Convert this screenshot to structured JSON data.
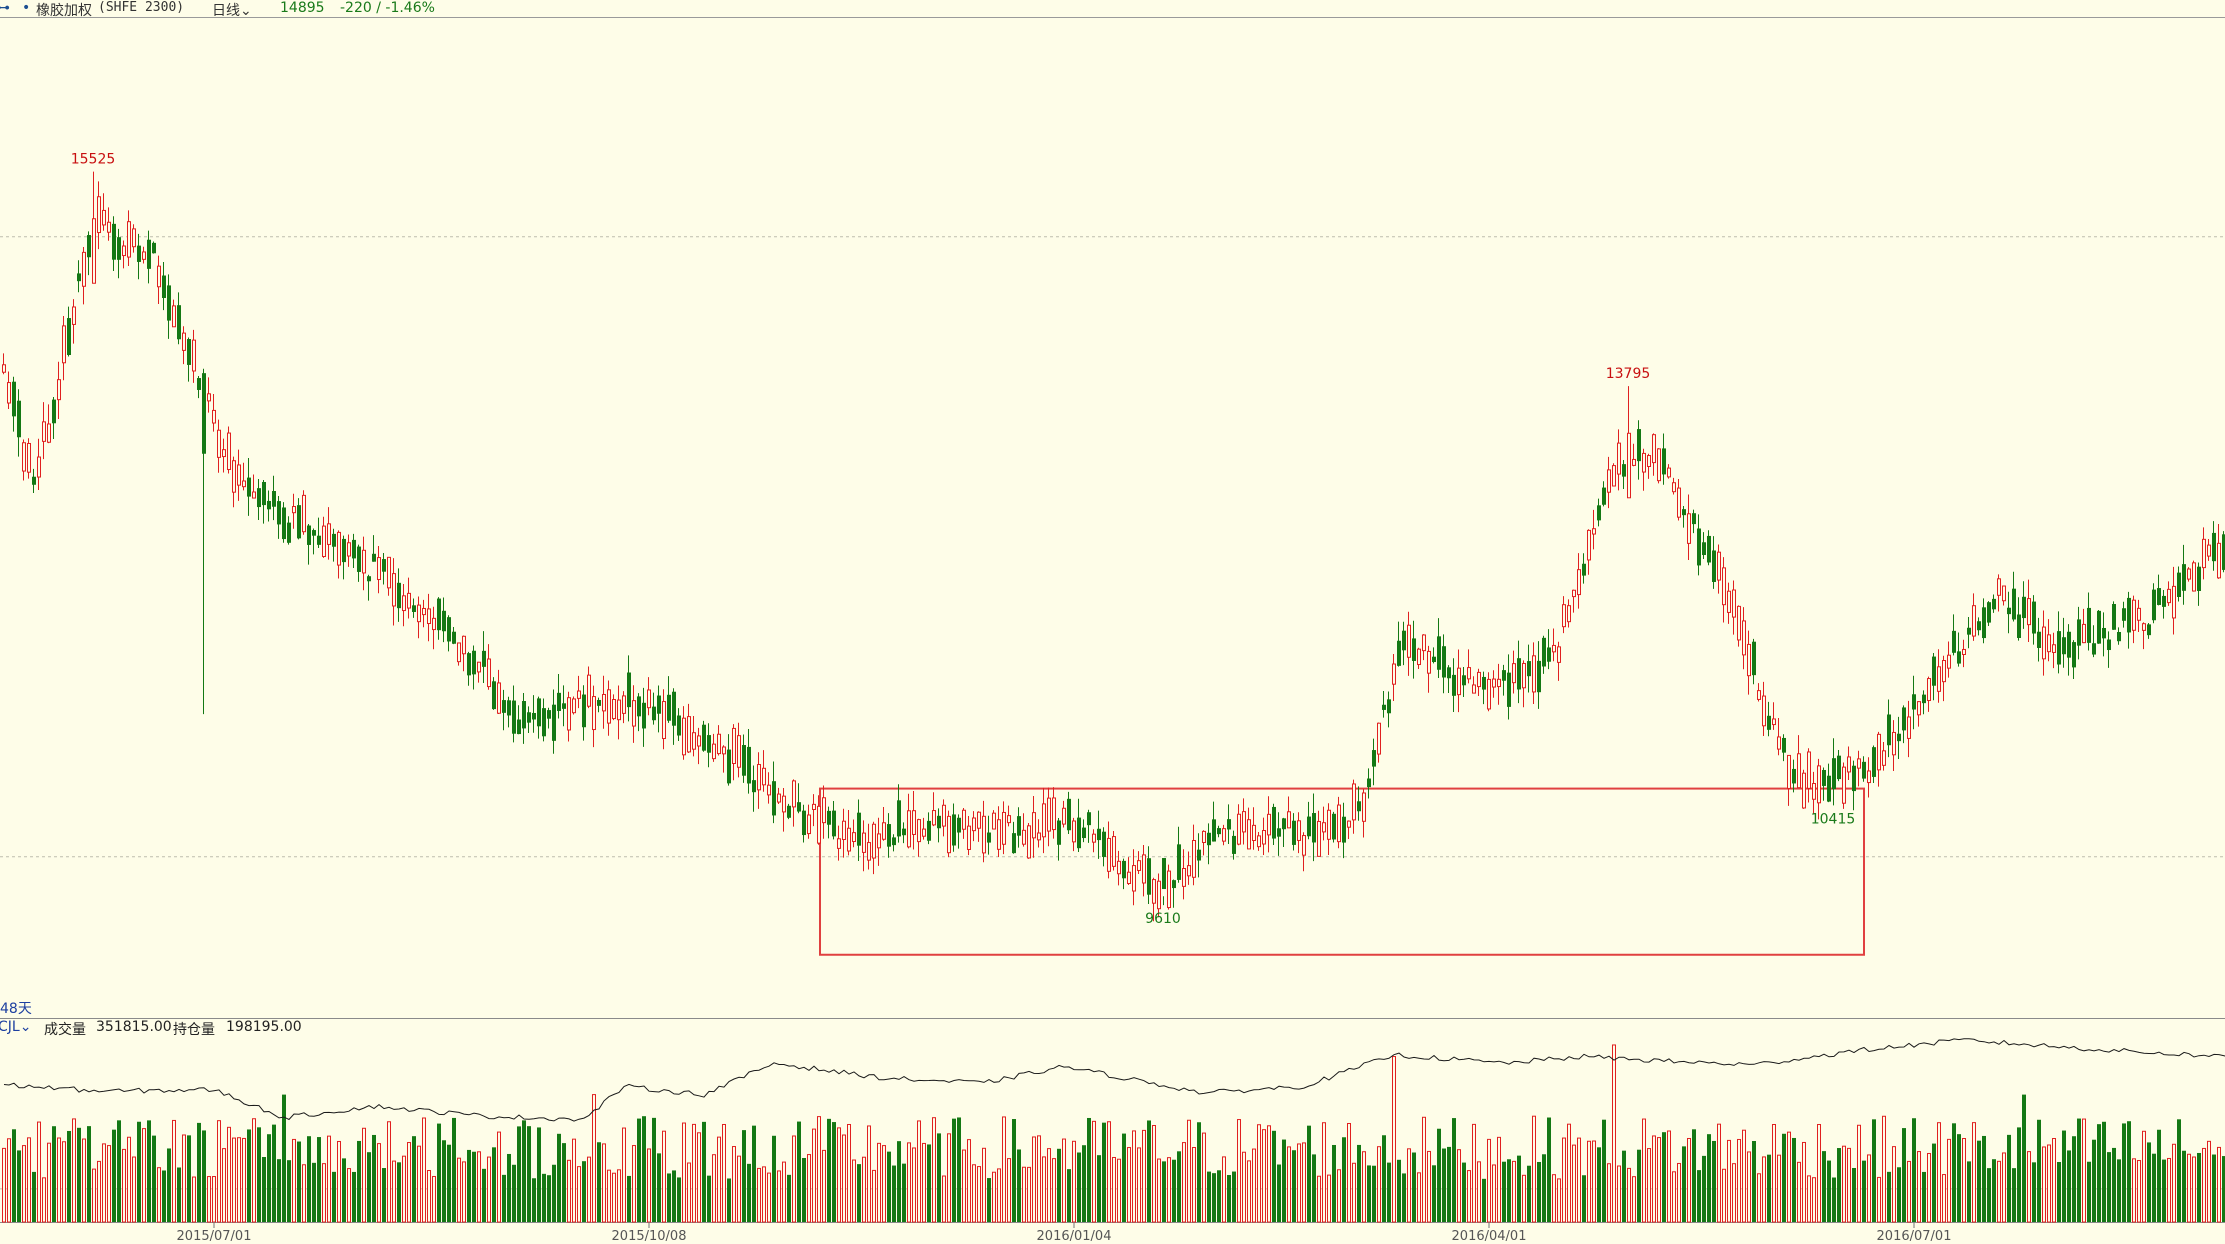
{
  "header": {
    "symbol_icon": "link-icon",
    "bullet": "•",
    "name": "橡胶加权",
    "exchange": "(SHFE 2300)",
    "period": "日线",
    "price": "14895",
    "change": "-220 / -1.46%"
  },
  "range_label": "48天",
  "volume_header": {
    "indicator": "CJL",
    "volume_label": "成交量",
    "volume_value": "351815.00",
    "oi_label": "持仓量",
    "oi_value": "198195.00"
  },
  "annotations": [
    {
      "text": "15525",
      "direction": "up"
    },
    {
      "text": "13795",
      "direction": "up"
    },
    {
      "text": "9610",
      "direction": "down"
    },
    {
      "text": "10415",
      "direction": "down"
    }
  ],
  "colors": {
    "background": "#fefde8",
    "up": "#e02020",
    "down": "#147814",
    "grid": "#bdbdad",
    "box": "#e04040"
  },
  "chart_data": {
    "type": "candlestick",
    "date_ticks": [
      "2015/07/01",
      "2015/10/08",
      "2016/01/04",
      "2016/04/01",
      "2016/07/01"
    ],
    "price_ylim": [
      9000,
      16500
    ],
    "price_gridlines": [
      15000,
      10000
    ],
    "highlight_box": {
      "price_low": 9210,
      "price_high": 10550
    },
    "volume_gridline": 200000,
    "volume_ylim": [
      0,
      1100000
    ],
    "anchors": [
      {
        "i": 0,
        "v": 14000
      },
      {
        "i": 6,
        "v": 13000
      },
      {
        "i": 18,
        "v": 15100
      },
      {
        "i": 30,
        "v": 14800
      },
      {
        "i": 48,
        "v": 12900
      },
      {
        "i": 68,
        "v": 12500
      },
      {
        "i": 88,
        "v": 11900
      },
      {
        "i": 104,
        "v": 11100
      },
      {
        "i": 122,
        "v": 11300
      },
      {
        "i": 140,
        "v": 11000
      },
      {
        "i": 158,
        "v": 10400
      },
      {
        "i": 172,
        "v": 10100
      },
      {
        "i": 186,
        "v": 10300
      },
      {
        "i": 204,
        "v": 10200
      },
      {
        "i": 214,
        "v": 10300
      },
      {
        "i": 232,
        "v": 9700
      },
      {
        "i": 242,
        "v": 10200
      },
      {
        "i": 262,
        "v": 10200
      },
      {
        "i": 272,
        "v": 10400
      },
      {
        "i": 280,
        "v": 11800
      },
      {
        "i": 296,
        "v": 11300
      },
      {
        "i": 310,
        "v": 11600
      },
      {
        "i": 322,
        "v": 13100
      },
      {
        "i": 330,
        "v": 13300
      },
      {
        "i": 344,
        "v": 12200
      },
      {
        "i": 358,
        "v": 10600
      },
      {
        "i": 372,
        "v": 10700
      },
      {
        "i": 384,
        "v": 11300
      },
      {
        "i": 398,
        "v": 12100
      },
      {
        "i": 412,
        "v": 11700
      },
      {
        "i": 428,
        "v": 11900
      },
      {
        "i": 444,
        "v": 12500
      }
    ],
    "labeled_points": [
      {
        "i": 18,
        "high": 15525
      },
      {
        "i": 325,
        "high": 13795
      },
      {
        "i": 232,
        "low": 9610
      },
      {
        "i": 366,
        "low": 10415
      }
    ],
    "open_interest_anchors": [
      {
        "i": 0,
        "v": 830000
      },
      {
        "i": 20,
        "v": 790000
      },
      {
        "i": 42,
        "v": 800000
      },
      {
        "i": 56,
        "v": 630000
      },
      {
        "i": 74,
        "v": 700000
      },
      {
        "i": 96,
        "v": 640000
      },
      {
        "i": 116,
        "v": 620000
      },
      {
        "i": 124,
        "v": 820000
      },
      {
        "i": 140,
        "v": 770000
      },
      {
        "i": 154,
        "v": 960000
      },
      {
        "i": 176,
        "v": 870000
      },
      {
        "i": 196,
        "v": 840000
      },
      {
        "i": 212,
        "v": 940000
      },
      {
        "i": 240,
        "v": 780000
      },
      {
        "i": 260,
        "v": 820000
      },
      {
        "i": 278,
        "v": 1010000
      },
      {
        "i": 300,
        "v": 960000
      },
      {
        "i": 316,
        "v": 1000000
      },
      {
        "i": 334,
        "v": 970000
      },
      {
        "i": 350,
        "v": 950000
      },
      {
        "i": 372,
        "v": 1040000
      },
      {
        "i": 392,
        "v": 1100000
      },
      {
        "i": 420,
        "v": 1040000
      },
      {
        "i": 444,
        "v": 1000000
      }
    ],
    "volume_peaks": [
      {
        "i": 56,
        "v": 770000
      },
      {
        "i": 118,
        "v": 770000
      },
      {
        "i": 278,
        "v": 1000000
      },
      {
        "i": 322,
        "v": 1070000
      },
      {
        "i": 404,
        "v": 770000
      }
    ]
  }
}
